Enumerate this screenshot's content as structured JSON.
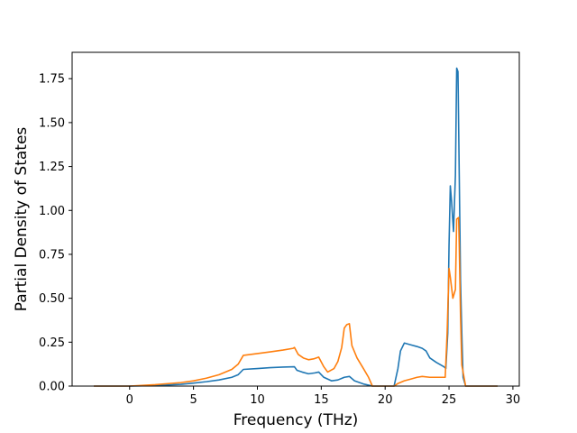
{
  "chart_data": {
    "type": "line",
    "title": "",
    "xlabel": "Frequency (THz)",
    "ylabel": "Partial Density of States",
    "xlim": [
      -4.5,
      30.5
    ],
    "ylim": [
      0,
      1.9
    ],
    "xticks": [
      0,
      5,
      10,
      15,
      20,
      25,
      30
    ],
    "xtick_labels": [
      "0",
      "5",
      "10",
      "15",
      "20",
      "25",
      "30"
    ],
    "yticks": [
      0,
      0.25,
      0.5,
      0.75,
      1.0,
      1.25,
      1.5,
      1.75
    ],
    "ytick_labels": [
      "0.00",
      "0.25",
      "0.50",
      "0.75",
      "1.00",
      "1.25",
      "1.50",
      "1.75"
    ],
    "grid": false,
    "legend": "none",
    "series": [
      {
        "color": "#1f77b4",
        "x": [
          -2.8,
          0,
          2,
          4,
          5,
          6,
          7,
          8,
          8.5,
          8.9,
          10,
          11,
          12,
          12.9,
          13.1,
          13.5,
          14,
          14.5,
          14.8,
          15.2,
          15.8,
          16.3,
          16.8,
          17.2,
          17.6,
          18.3,
          18.8,
          19.0,
          20.7,
          21.0,
          21.2,
          21.5,
          22.0,
          22.5,
          22.9,
          23.2,
          23.5,
          24.0,
          24.6,
          24.75,
          24.9,
          25.0,
          25.1,
          25.2,
          25.35,
          25.5,
          25.6,
          25.7,
          25.8,
          25.9,
          26.0,
          26.1,
          26.3,
          28.8
        ],
        "y": [
          0.0,
          0.0,
          0.003,
          0.01,
          0.017,
          0.025,
          0.035,
          0.05,
          0.065,
          0.095,
          0.1,
          0.105,
          0.108,
          0.11,
          0.09,
          0.08,
          0.07,
          0.075,
          0.08,
          0.05,
          0.03,
          0.035,
          0.05,
          0.055,
          0.03,
          0.012,
          0.004,
          0.0,
          0.0,
          0.1,
          0.2,
          0.245,
          0.235,
          0.225,
          0.215,
          0.2,
          0.16,
          0.135,
          0.11,
          0.1,
          0.3,
          0.8,
          1.14,
          1.05,
          0.88,
          1.2,
          1.81,
          1.79,
          1.2,
          0.6,
          0.3,
          0.05,
          0.0,
          0.0
        ]
      },
      {
        "color": "#ff7f0e",
        "x": [
          -2.8,
          0,
          2,
          4,
          5,
          6,
          7,
          8,
          8.5,
          8.9,
          10,
          11,
          12,
          12.8,
          12.9,
          13.2,
          13.6,
          14.0,
          14.4,
          14.8,
          15.2,
          15.5,
          16.0,
          16.3,
          16.6,
          16.8,
          17.0,
          17.2,
          17.4,
          17.8,
          18.3,
          18.7,
          19.0,
          20.7,
          21.0,
          21.5,
          22.0,
          22.5,
          22.9,
          23.5,
          24.0,
          24.5,
          24.7,
          24.85,
          25.0,
          25.1,
          25.3,
          25.5,
          25.6,
          25.75,
          25.8,
          25.9,
          26.0,
          26.3,
          28.8
        ],
        "y": [
          0.0,
          0.0,
          0.008,
          0.02,
          0.03,
          0.045,
          0.065,
          0.095,
          0.125,
          0.175,
          0.185,
          0.195,
          0.205,
          0.215,
          0.22,
          0.18,
          0.16,
          0.15,
          0.155,
          0.165,
          0.11,
          0.08,
          0.1,
          0.14,
          0.22,
          0.33,
          0.35,
          0.355,
          0.23,
          0.16,
          0.1,
          0.05,
          0.0,
          0.0,
          0.015,
          0.03,
          0.04,
          0.05,
          0.055,
          0.05,
          0.05,
          0.05,
          0.05,
          0.3,
          0.67,
          0.62,
          0.5,
          0.55,
          0.95,
          0.96,
          0.8,
          0.4,
          0.12,
          0.0,
          0.0
        ]
      }
    ]
  }
}
